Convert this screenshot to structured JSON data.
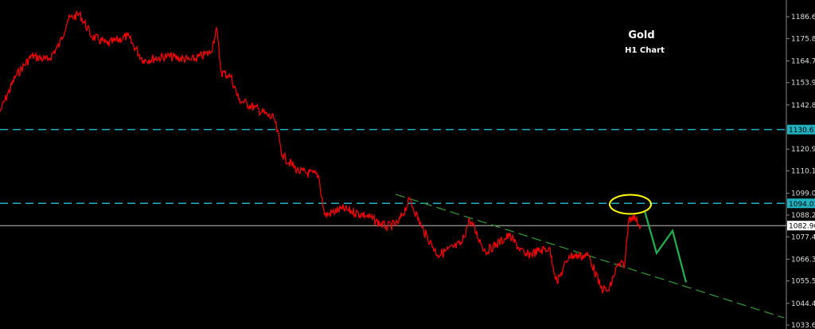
{
  "chart_data": {
    "type": "line",
    "title": "Gold",
    "subtitle": "H1 Chart",
    "ylim": [
      1033.6,
      1192
    ],
    "y_ticks": [
      "1186.60",
      "1175.80",
      "1164.70",
      "1153.90",
      "1142.80",
      "1120.90",
      "1110.10",
      "1099.00",
      "1088.20",
      "1077.40",
      "1066.30",
      "1055.50",
      "1044.40",
      "1033.60"
    ],
    "grid": false,
    "series": [
      {
        "color": "#ff0000",
        "x": [
          0,
          20,
          40,
          60,
          75,
          85,
          100,
          115,
          135,
          160,
          180,
          210,
          240,
          265,
          272,
          278,
          290,
          300,
          320,
          345,
          355,
          375,
          400,
          408,
          430,
          460,
          485,
          500,
          515,
          530,
          550,
          580,
          590,
          610,
          640,
          660,
          690,
          700,
          715,
          740,
          755,
          765,
          775,
          785,
          790,
          795,
          805
        ],
        "values": [
          1139.6,
          1157.4,
          1167.2,
          1165,
          1173,
          1185,
          1188,
          1177,
          1173,
          1177,
          1165,
          1167,
          1165,
          1169,
          1181,
          1159,
          1157,
          1145.5,
          1141.5,
          1135.6,
          1117.8,
          1109.9,
          1108,
          1088,
          1091.3,
          1088,
          1082.3,
          1084,
          1096,
          1082,
          1068.4,
          1074,
          1086,
          1070,
          1078,
          1068,
          1072,
          1054.6,
          1068,
          1068,
          1052,
          1050.6,
          1062.5,
          1064,
          1086,
          1088,
          1083
        ]
      }
    ],
    "levels": [
      {
        "label": "1130.61",
        "value": 1130.61,
        "style": "dashed",
        "color": "#20b2c0"
      },
      {
        "label": "1094.01",
        "value": 1094.01,
        "style": "dashed",
        "color": "#20b2c0"
      },
      {
        "label": "1082.96",
        "value": 1082.96,
        "style": "solid",
        "color": "#c0c0c0"
      }
    ],
    "trendline": {
      "color": "#2e9e2e",
      "from": [
        497,
        1098.5
      ],
      "to": [
        985,
        1037.2
      ]
    },
    "forecast": {
      "color": "#22b14c",
      "x": [
        810,
        825,
        845,
        862
      ],
      "values": [
        1090.2,
        1069.3,
        1080.4,
        1054.8
      ]
    },
    "highlight": {
      "color": "#ffff00",
      "x": 792,
      "value": 1093.5
    }
  }
}
